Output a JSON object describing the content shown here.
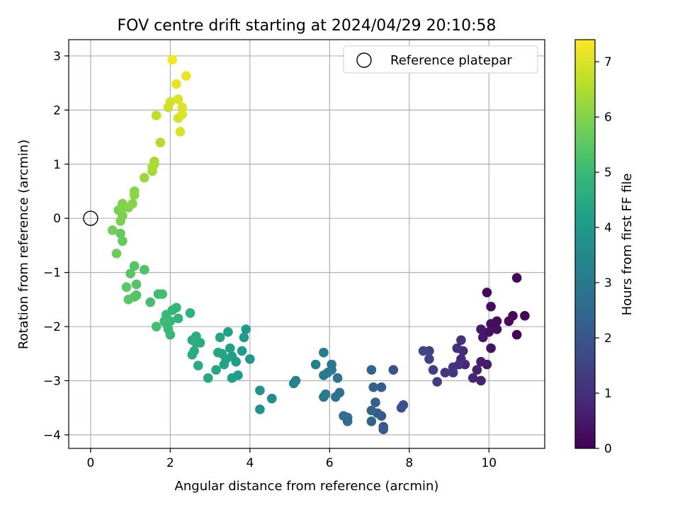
{
  "chart_data": {
    "type": "scatter",
    "title": "FOV centre drift starting at 2024/04/29 20:10:58",
    "xlabel": "Angular distance from reference (arcmin)",
    "ylabel": "Rotation from reference (arcmin)",
    "xlim": [
      -0.55,
      11.4
    ],
    "ylim": [
      -4.25,
      3.3
    ],
    "xticks": [
      0,
      2,
      4,
      6,
      8,
      10
    ],
    "yticks": [
      -4,
      -3,
      -2,
      -1,
      0,
      1,
      2,
      3
    ],
    "grid": true,
    "legend": {
      "placement": "upper-right",
      "entries": [
        "Reference platepar"
      ]
    },
    "reference_point": {
      "x": 0,
      "y": 0,
      "marker": "open-circle",
      "color": "#000000"
    },
    "colorbar": {
      "label": "Hours from first FF file",
      "range": [
        0,
        7.4
      ],
      "ticks": [
        0,
        1,
        2,
        3,
        4,
        5,
        6,
        7
      ],
      "colormap": "viridis",
      "stops": [
        "#440154",
        "#482878",
        "#3e4989",
        "#31688e",
        "#26828e",
        "#1f9e89",
        "#35b779",
        "#6ece58",
        "#b5de2b",
        "#fde725"
      ]
    },
    "points": [
      {
        "x": 10.7,
        "y": -1.1,
        "t": 0.1
      },
      {
        "x": 10.9,
        "y": -1.8,
        "t": 0.12
      },
      {
        "x": 10.6,
        "y": -1.8,
        "t": 0.15
      },
      {
        "x": 10.7,
        "y": -2.15,
        "t": 0.08
      },
      {
        "x": 10.5,
        "y": -1.9,
        "t": 0.18
      },
      {
        "x": 10.2,
        "y": -1.9,
        "t": 0.25
      },
      {
        "x": 10.2,
        "y": -2.05,
        "t": 0.3
      },
      {
        "x": 10.05,
        "y": -1.95,
        "t": 0.28
      },
      {
        "x": 10.0,
        "y": -2.1,
        "t": 0.35
      },
      {
        "x": 10.05,
        "y": -1.63,
        "t": 0.3
      },
      {
        "x": 9.95,
        "y": -1.37,
        "t": 0.2
      },
      {
        "x": 10.05,
        "y": -2.4,
        "t": 0.4
      },
      {
        "x": 9.85,
        "y": -2.2,
        "t": 0.45
      },
      {
        "x": 9.8,
        "y": -2.05,
        "t": 0.5
      },
      {
        "x": 9.95,
        "y": -2.7,
        "t": 0.55
      },
      {
        "x": 9.8,
        "y": -2.65,
        "t": 0.6
      },
      {
        "x": 9.7,
        "y": -2.8,
        "t": 0.65
      },
      {
        "x": 9.8,
        "y": -3.0,
        "t": 0.7
      },
      {
        "x": 9.6,
        "y": -2.95,
        "t": 0.75
      },
      {
        "x": 9.4,
        "y": -2.7,
        "t": 0.85
      },
      {
        "x": 9.3,
        "y": -2.6,
        "t": 0.9
      },
      {
        "x": 9.35,
        "y": -2.45,
        "t": 0.95
      },
      {
        "x": 9.3,
        "y": -2.25,
        "t": 1.0
      },
      {
        "x": 9.2,
        "y": -2.4,
        "t": 1.0
      },
      {
        "x": 9.25,
        "y": -2.7,
        "t": 1.05
      },
      {
        "x": 9.1,
        "y": -2.75,
        "t": 1.1
      },
      {
        "x": 9.1,
        "y": -2.85,
        "t": 1.15
      },
      {
        "x": 8.9,
        "y": -2.85,
        "t": 1.2
      },
      {
        "x": 8.7,
        "y": -3.02,
        "t": 1.3
      },
      {
        "x": 8.6,
        "y": -2.8,
        "t": 1.4
      },
      {
        "x": 8.5,
        "y": -2.6,
        "t": 1.45
      },
      {
        "x": 8.5,
        "y": -2.45,
        "t": 1.5
      },
      {
        "x": 8.35,
        "y": -2.45,
        "t": 1.55
      },
      {
        "x": 7.85,
        "y": -3.45,
        "t": 1.8
      },
      {
        "x": 7.8,
        "y": -3.5,
        "t": 1.85
      },
      {
        "x": 7.6,
        "y": -2.8,
        "t": 1.9
      },
      {
        "x": 7.35,
        "y": -3.85,
        "t": 2.0
      },
      {
        "x": 7.35,
        "y": -3.9,
        "t": 2.05
      },
      {
        "x": 7.3,
        "y": -3.65,
        "t": 2.1
      },
      {
        "x": 7.3,
        "y": -3.12,
        "t": 2.15
      },
      {
        "x": 7.2,
        "y": -3.6,
        "t": 2.2
      },
      {
        "x": 7.15,
        "y": -3.4,
        "t": 2.25
      },
      {
        "x": 7.1,
        "y": -3.12,
        "t": 2.3
      },
      {
        "x": 7.05,
        "y": -3.55,
        "t": 2.35
      },
      {
        "x": 7.05,
        "y": -3.75,
        "t": 2.4
      },
      {
        "x": 7.05,
        "y": -2.8,
        "t": 2.45
      },
      {
        "x": 6.45,
        "y": -3.75,
        "t": 2.6
      },
      {
        "x": 6.45,
        "y": -3.68,
        "t": 2.65
      },
      {
        "x": 6.35,
        "y": -3.65,
        "t": 2.7
      },
      {
        "x": 6.25,
        "y": -3.22,
        "t": 2.75
      },
      {
        "x": 6.15,
        "y": -3.3,
        "t": 2.8
      },
      {
        "x": 6.2,
        "y": -2.95,
        "t": 2.85
      },
      {
        "x": 6.05,
        "y": -2.7,
        "t": 2.9
      },
      {
        "x": 6.05,
        "y": -2.8,
        "t": 2.95
      },
      {
        "x": 5.95,
        "y": -2.85,
        "t": 3.0
      },
      {
        "x": 5.85,
        "y": -2.9,
        "t": 3.05
      },
      {
        "x": 5.85,
        "y": -3.3,
        "t": 3.05
      },
      {
        "x": 5.9,
        "y": -3.25,
        "t": 3.1
      },
      {
        "x": 5.85,
        "y": -2.48,
        "t": 3.15
      },
      {
        "x": 5.65,
        "y": -2.7,
        "t": 3.2
      },
      {
        "x": 5.15,
        "y": -3.0,
        "t": 3.3
      },
      {
        "x": 5.1,
        "y": -3.05,
        "t": 3.35
      },
      {
        "x": 4.55,
        "y": -3.33,
        "t": 3.6
      },
      {
        "x": 4.25,
        "y": -3.18,
        "t": 3.75
      },
      {
        "x": 4.25,
        "y": -3.53,
        "t": 3.8
      },
      {
        "x": 4.0,
        "y": -2.6,
        "t": 3.9
      },
      {
        "x": 3.9,
        "y": -2.05,
        "t": 4.0
      },
      {
        "x": 3.85,
        "y": -2.2,
        "t": 4.0
      },
      {
        "x": 3.8,
        "y": -2.45,
        "t": 4.05
      },
      {
        "x": 3.7,
        "y": -2.9,
        "t": 4.1
      },
      {
        "x": 3.65,
        "y": -2.65,
        "t": 4.1
      },
      {
        "x": 3.55,
        "y": -2.55,
        "t": 4.15
      },
      {
        "x": 3.55,
        "y": -2.95,
        "t": 4.15
      },
      {
        "x": 3.5,
        "y": -2.4,
        "t": 4.2
      },
      {
        "x": 3.45,
        "y": -2.1,
        "t": 4.2
      },
      {
        "x": 3.4,
        "y": -2.6,
        "t": 4.25
      },
      {
        "x": 3.35,
        "y": -2.7,
        "t": 4.25
      },
      {
        "x": 3.3,
        "y": -2.5,
        "t": 4.3
      },
      {
        "x": 3.25,
        "y": -2.2,
        "t": 4.3
      },
      {
        "x": 3.2,
        "y": -2.48,
        "t": 4.35
      },
      {
        "x": 3.15,
        "y": -2.8,
        "t": 4.35
      },
      {
        "x": 2.95,
        "y": -2.95,
        "t": 4.4
      },
      {
        "x": 2.75,
        "y": -2.3,
        "t": 4.5
      },
      {
        "x": 2.7,
        "y": -2.72,
        "t": 4.5
      },
      {
        "x": 2.65,
        "y": -2.3,
        "t": 4.55
      },
      {
        "x": 2.65,
        "y": -2.18,
        "t": 4.55
      },
      {
        "x": 2.6,
        "y": -2.45,
        "t": 4.6
      },
      {
        "x": 2.55,
        "y": -2.52,
        "t": 4.6
      },
      {
        "x": 2.55,
        "y": -2.25,
        "t": 4.6
      },
      {
        "x": 2.5,
        "y": -1.75,
        "t": 4.7
      },
      {
        "x": 2.2,
        "y": -1.85,
        "t": 4.85
      },
      {
        "x": 2.15,
        "y": -1.65,
        "t": 4.9
      },
      {
        "x": 2.05,
        "y": -1.7,
        "t": 4.9
      },
      {
        "x": 2.0,
        "y": -2.15,
        "t": 4.95
      },
      {
        "x": 2.0,
        "y": -1.9,
        "t": 4.95
      },
      {
        "x": 1.95,
        "y": -2.05,
        "t": 5.0
      },
      {
        "x": 1.9,
        "y": -1.95,
        "t": 5.0
      },
      {
        "x": 1.9,
        "y": -1.78,
        "t": 5.0
      },
      {
        "x": 1.85,
        "y": -1.9,
        "t": 5.05
      },
      {
        "x": 1.8,
        "y": -1.4,
        "t": 5.1
      },
      {
        "x": 1.7,
        "y": -1.4,
        "t": 5.1
      },
      {
        "x": 1.65,
        "y": -2.0,
        "t": 5.15
      },
      {
        "x": 1.5,
        "y": -1.55,
        "t": 5.2
      },
      {
        "x": 1.35,
        "y": -0.95,
        "t": 5.3
      },
      {
        "x": 1.15,
        "y": -1.42,
        "t": 5.35
      },
      {
        "x": 1.15,
        "y": -1.22,
        "t": 5.35
      },
      {
        "x": 1.1,
        "y": -0.88,
        "t": 5.4
      },
      {
        "x": 1.1,
        "y": -1.45,
        "t": 5.4
      },
      {
        "x": 1.0,
        "y": -1.02,
        "t": 5.45
      },
      {
        "x": 0.95,
        "y": -1.5,
        "t": 5.45
      },
      {
        "x": 0.9,
        "y": -1.27,
        "t": 5.5
      },
      {
        "x": 0.8,
        "y": -0.42,
        "t": 5.6
      },
      {
        "x": 0.75,
        "y": -0.28,
        "t": 5.65
      },
      {
        "x": 0.65,
        "y": -0.65,
        "t": 5.7
      },
      {
        "x": 0.55,
        "y": -0.22,
        "t": 5.75
      },
      {
        "x": 0.7,
        "y": 0.15,
        "t": 5.85
      },
      {
        "x": 0.75,
        "y": -0.05,
        "t": 5.9
      },
      {
        "x": 0.8,
        "y": 0.05,
        "t": 5.9
      },
      {
        "x": 0.8,
        "y": 0.2,
        "t": 5.95
      },
      {
        "x": 0.8,
        "y": 0.27,
        "t": 5.95
      },
      {
        "x": 0.95,
        "y": 0.2,
        "t": 6.0
      },
      {
        "x": 1.05,
        "y": 0.27,
        "t": 6.05
      },
      {
        "x": 1.1,
        "y": 0.43,
        "t": 6.1
      },
      {
        "x": 1.1,
        "y": 0.5,
        "t": 6.1
      },
      {
        "x": 1.35,
        "y": 0.75,
        "t": 6.25
      },
      {
        "x": 1.55,
        "y": 0.87,
        "t": 6.35
      },
      {
        "x": 1.55,
        "y": 0.95,
        "t": 6.4
      },
      {
        "x": 1.6,
        "y": 1.05,
        "t": 6.4
      },
      {
        "x": 1.6,
        "y": 1.0,
        "t": 6.45
      },
      {
        "x": 1.75,
        "y": 1.4,
        "t": 6.55
      },
      {
        "x": 1.65,
        "y": 1.9,
        "t": 6.7
      },
      {
        "x": 1.95,
        "y": 2.05,
        "t": 6.85
      },
      {
        "x": 2.0,
        "y": 2.15,
        "t": 6.9
      },
      {
        "x": 2.2,
        "y": 1.85,
        "t": 6.9
      },
      {
        "x": 2.25,
        "y": 1.6,
        "t": 6.95
      },
      {
        "x": 2.3,
        "y": 1.92,
        "t": 7.0
      },
      {
        "x": 2.2,
        "y": 2.2,
        "t": 7.0
      },
      {
        "x": 2.3,
        "y": 2.05,
        "t": 7.05
      },
      {
        "x": 2.15,
        "y": 2.48,
        "t": 7.15
      },
      {
        "x": 2.4,
        "y": 2.63,
        "t": 7.2
      },
      {
        "x": 2.05,
        "y": 2.93,
        "t": 7.3
      }
    ]
  }
}
